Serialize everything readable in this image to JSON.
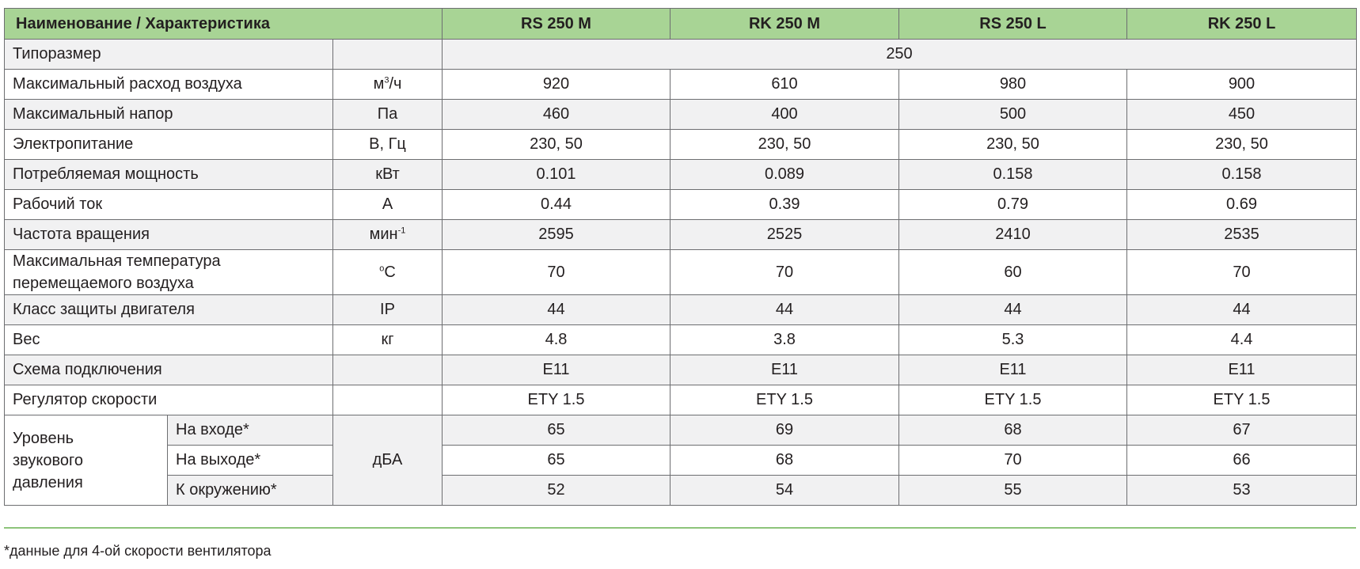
{
  "header": {
    "name_col": "Наименование / Характеристика",
    "models": [
      "RS 250 M",
      "RK 250 M",
      "RS 250 L",
      "RK 250 L"
    ]
  },
  "rows": [
    {
      "name": "Типоразмер",
      "unit": "",
      "span_value": "250"
    },
    {
      "name": "Максимальный расход воздуха",
      "unit_base": "м",
      "unit_sup": "3",
      "unit_tail": "/ч",
      "values": [
        "920",
        "610",
        "980",
        "900"
      ]
    },
    {
      "name": "Максимальный напор",
      "unit": "Па",
      "values": [
        "460",
        "400",
        "500",
        "450"
      ]
    },
    {
      "name": "Электропитание",
      "unit": "В, Гц",
      "values": [
        "230, 50",
        "230, 50",
        "230, 50",
        "230, 50"
      ]
    },
    {
      "name": "Потребляемая мощность",
      "unit": "кВт",
      "values": [
        "0.101",
        "0.089",
        "0.158",
        "0.158"
      ]
    },
    {
      "name": "Рабочий ток",
      "unit": "А",
      "values": [
        "0.44",
        "0.39",
        "0.79",
        "0.69"
      ]
    },
    {
      "name": "Частота вращения",
      "unit_base": "мин",
      "unit_sup": "-1",
      "values": [
        "2595",
        "2525",
        "2410",
        "2535"
      ]
    },
    {
      "name_line1": "Максимальная температура",
      "name_line2": "перемещаемого воздуха",
      "unit_sup": "o",
      "unit_tail": "С",
      "values": [
        "70",
        "70",
        "60",
        "70"
      ]
    },
    {
      "name": "Класс защиты двигателя",
      "unit": "IP",
      "values": [
        "44",
        "44",
        "44",
        "44"
      ]
    },
    {
      "name": "Вес",
      "unit": "кг",
      "values": [
        "4.8",
        "3.8",
        "5.3",
        "4.4"
      ]
    },
    {
      "name": "Схема подключения",
      "unit": "",
      "values": [
        "E11",
        "E11",
        "E11",
        "E11"
      ]
    },
    {
      "name": "Регулятор скорости",
      "unit": "",
      "values": [
        "ETY 1.5",
        "ETY 1.5",
        "ETY 1.5",
        "ETY 1.5"
      ]
    }
  ],
  "sound": {
    "group_line1": "Уровень",
    "group_line2": "звукового",
    "group_line3": "давления",
    "unit": "дБА",
    "rows": [
      {
        "name": "На входе*",
        "values": [
          "65",
          "69",
          "68",
          "67"
        ]
      },
      {
        "name": "На выходе*",
        "values": [
          "65",
          "68",
          "70",
          "66"
        ]
      },
      {
        "name": "К окружению*",
        "values": [
          "52",
          "54",
          "55",
          "53"
        ]
      }
    ]
  },
  "footnote": "*данные для 4-ой скорости вентилятора",
  "colors": {
    "header_bg": "#a8d495",
    "row_alt_bg": "#f1f1f2",
    "rule": "#8dc47a",
    "border": "#6d6e71"
  }
}
